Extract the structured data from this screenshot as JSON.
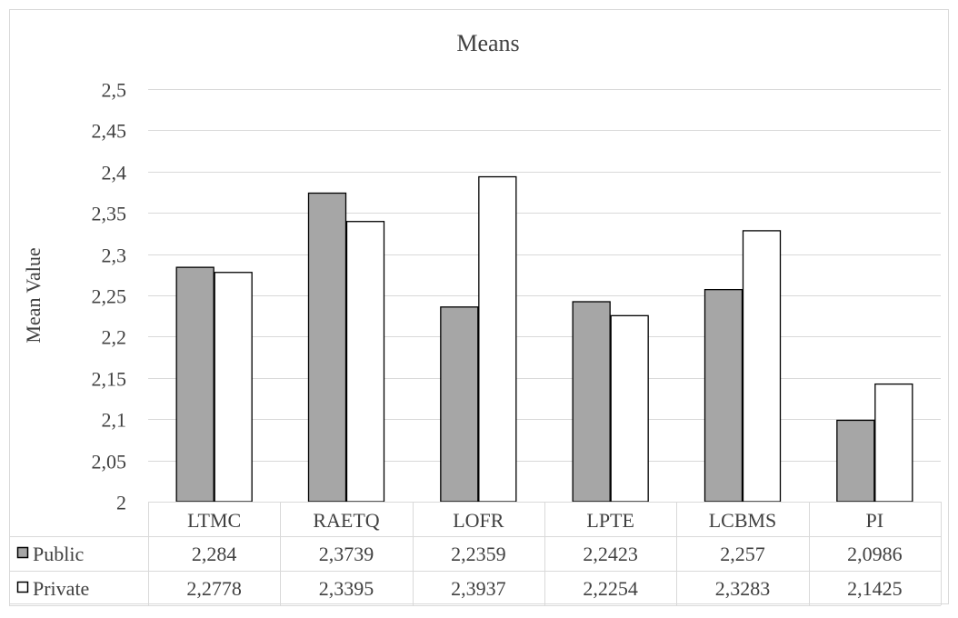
{
  "chart_data": {
    "type": "bar",
    "title": "Means",
    "xlabel": "",
    "ylabel": "Mean Value",
    "categories": [
      "LTMC",
      "RAETQ",
      "LOFR",
      "LPTE",
      "LCBMS",
      "PI"
    ],
    "series": [
      {
        "name": "Public",
        "values": [
          2.284,
          2.3739,
          2.2359,
          2.2423,
          2.257,
          2.0986
        ],
        "labels": [
          "2,284",
          "2,3739",
          "2,2359",
          "2,2423",
          "2,257",
          "2,0986"
        ],
        "color": "#a6a6a6"
      },
      {
        "name": "Private",
        "values": [
          2.2778,
          2.3395,
          2.3937,
          2.2254,
          2.3283,
          2.1425
        ],
        "labels": [
          "2,2778",
          "2,3395",
          "2,3937",
          "2,2254",
          "2,3283",
          "2,1425"
        ],
        "color": "#ffffff"
      }
    ],
    "ylim": [
      2,
      2.5
    ],
    "yticks": [
      "2",
      "2,05",
      "2,1",
      "2,15",
      "2,2",
      "2,25",
      "2,3",
      "2,35",
      "2,4",
      "2,45",
      "2,5"
    ],
    "grid": true,
    "legend": "data-table-below"
  }
}
